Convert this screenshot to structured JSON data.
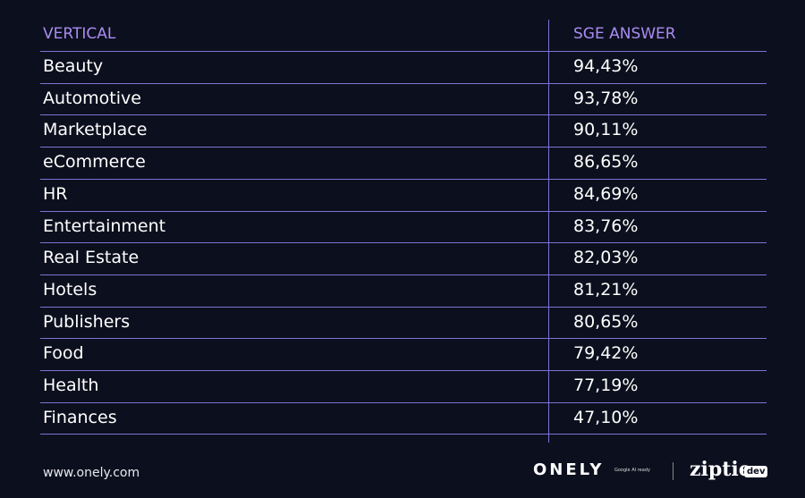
{
  "table": {
    "header": [
      "VERTICAL",
      "SGE ANSWER"
    ],
    "rows": [
      [
        "Beauty",
        "94,43%"
      ],
      [
        "Automotive",
        "93,78%"
      ],
      [
        "Marketplace",
        "90,11%"
      ],
      [
        "eCommerce",
        "86,65%"
      ],
      [
        "HR",
        "84,69%"
      ],
      [
        "Entertainment",
        "83,76%"
      ],
      [
        "Real Estate",
        "82,03%"
      ],
      [
        "Hotels",
        "81,21%"
      ],
      [
        "Publishers",
        "80,65%"
      ],
      [
        "Food",
        "79,42%"
      ],
      [
        "Health",
        "77,19%"
      ],
      [
        "Finances",
        "47,10%"
      ]
    ]
  },
  "footer": {
    "url": "www.onely.com",
    "onely_logo": "ONELY",
    "onely_tagline": "Google AI ready",
    "ziptie_logo": "ziptie",
    "ziptie_badge": "dev"
  }
}
